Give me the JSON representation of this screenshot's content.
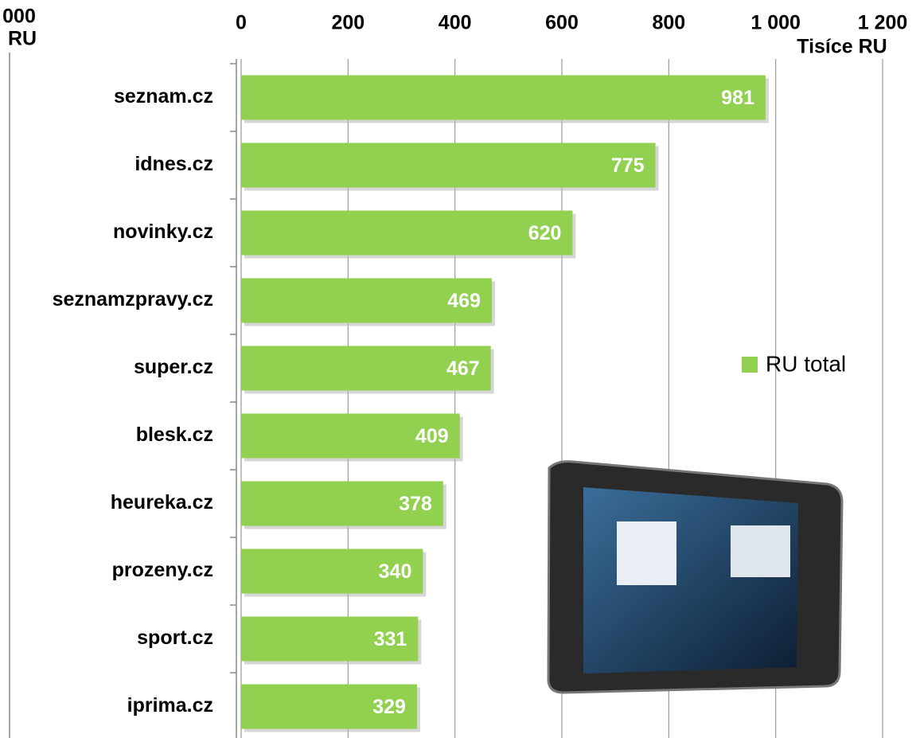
{
  "chart_data": {
    "type": "barh",
    "x_axis_label": "Tisíce RU",
    "categories": [
      "seznam.cz",
      "idnes.cz",
      "novinky.cz",
      "seznamzpravy.cz",
      "super.cz",
      "blesk.cz",
      "heureka.cz",
      "prozeny.cz",
      "sport.cz",
      "iprima.cz"
    ],
    "series": [
      {
        "name": "RU total",
        "color": "#92d050",
        "values": [
          981,
          775,
          620,
          469,
          467,
          409,
          378,
          340,
          331,
          329
        ]
      }
    ],
    "xlim": [
      0,
      1200
    ],
    "xticks": [
      0,
      200,
      400,
      600,
      800,
      {
        "value": 1000,
        "label": "1 000"
      },
      {
        "value": 1200,
        "label": "1 200"
      }
    ],
    "grid": true,
    "legend": "right"
  },
  "clipped_text": [
    "000",
    "RU"
  ]
}
